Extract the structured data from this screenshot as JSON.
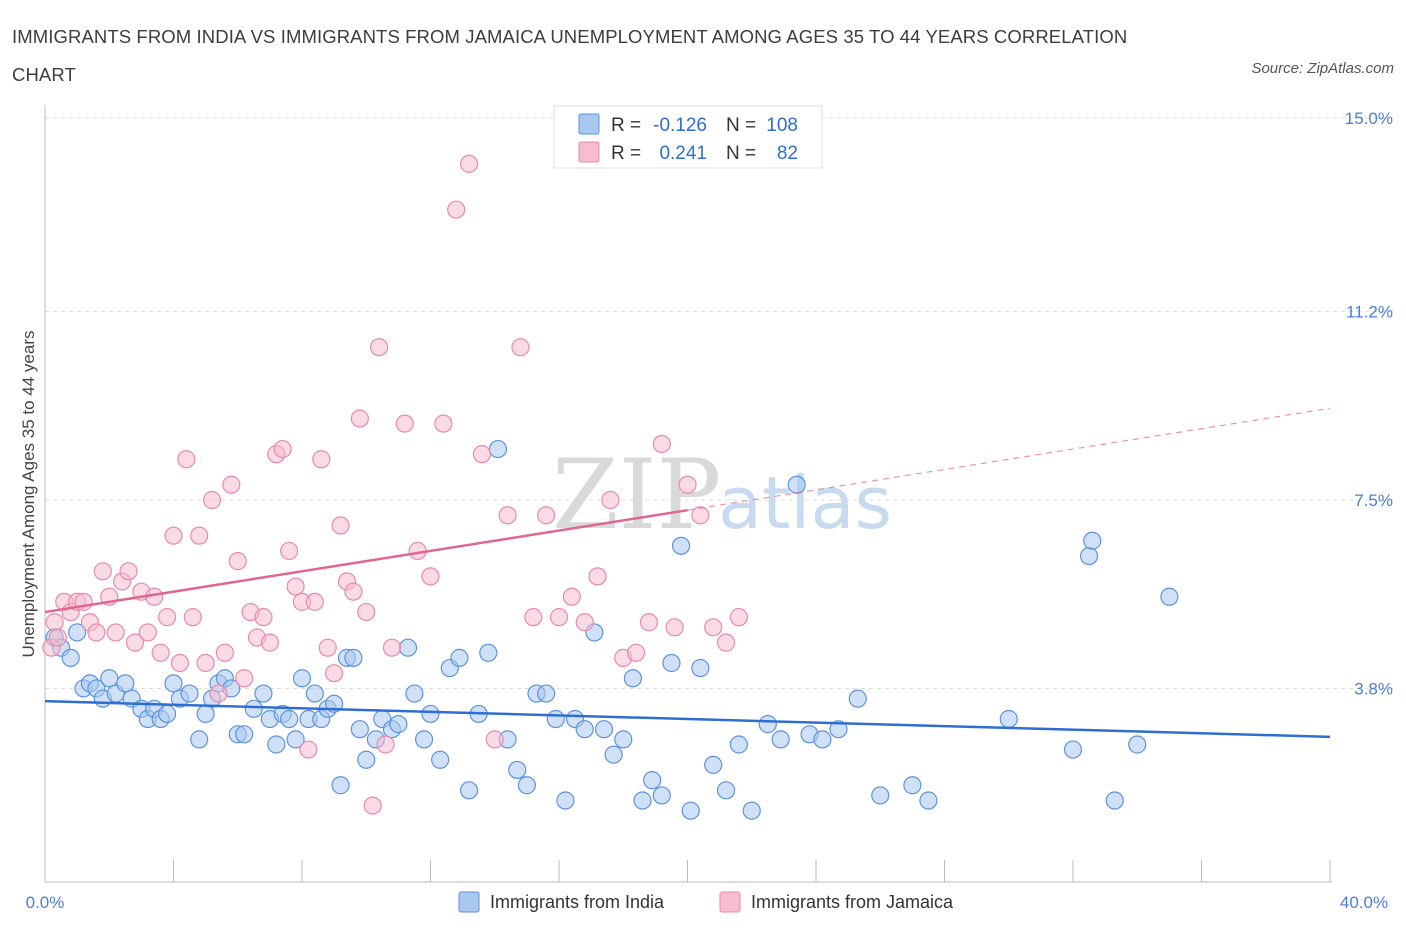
{
  "header": {
    "title": "IMMIGRANTS FROM INDIA VS IMMIGRANTS FROM JAMAICA UNEMPLOYMENT AMONG AGES 35 TO 44 YEARS CORRELATION CHART",
    "source": "Source: ZipAtlas.com"
  },
  "watermark": {
    "zip": "ZIP",
    "atlas": "atlas"
  },
  "legend": {
    "r_label": "R =",
    "n_label": "N =",
    "india": {
      "r": "-0.126",
      "n": "108"
    },
    "jamaica": {
      "r": "0.241",
      "n": "82"
    }
  },
  "colors": {
    "india_fill": "#a9c8f0",
    "india_stroke": "#5d93dd",
    "india_line": "#2f6ed0",
    "jamaica_fill": "#f6bcd0",
    "jamaica_stroke": "#e88aab",
    "jamaica_line": "#e06592"
  },
  "chart_data": {
    "type": "scatter",
    "title": "IMMIGRANTS FROM INDIA VS IMMIGRANTS FROM JAMAICA UNEMPLOYMENT AMONG AGES 35 TO 44 YEARS CORRELATION CHART",
    "xlabel": "",
    "ylabel": "Unemployment Among Ages 35 to 44 years",
    "xlim": [
      0,
      40
    ],
    "ylim": [
      0,
      15
    ],
    "x_tick_labels": [
      "0.0%",
      "40.0%"
    ],
    "y_ticks": [
      3.8,
      7.5,
      11.2,
      15.0
    ],
    "y_tick_labels": [
      "3.8%",
      "7.5%",
      "11.2%",
      "15.0%"
    ],
    "grid": true,
    "legend_position": "top-center",
    "series": [
      {
        "name": "Immigrants from India",
        "r": -0.126,
        "n": 108,
        "trend": {
          "x0": 0,
          "y0": 3.55,
          "x1": 40,
          "y1": 2.85
        },
        "points": [
          [
            0.3,
            4.8
          ],
          [
            0.5,
            4.6
          ],
          [
            0.8,
            4.4
          ],
          [
            1.0,
            4.9
          ],
          [
            1.2,
            3.8
          ],
          [
            1.4,
            3.9
          ],
          [
            1.6,
            3.8
          ],
          [
            1.8,
            3.6
          ],
          [
            2.0,
            4.0
          ],
          [
            2.2,
            3.7
          ],
          [
            2.5,
            3.9
          ],
          [
            2.7,
            3.6
          ],
          [
            3.0,
            3.4
          ],
          [
            3.2,
            3.2
          ],
          [
            3.4,
            3.4
          ],
          [
            3.6,
            3.2
          ],
          [
            3.8,
            3.3
          ],
          [
            4.0,
            3.9
          ],
          [
            4.2,
            3.6
          ],
          [
            4.5,
            3.7
          ],
          [
            4.8,
            2.8
          ],
          [
            5.0,
            3.3
          ],
          [
            5.2,
            3.6
          ],
          [
            5.4,
            3.9
          ],
          [
            5.6,
            4.0
          ],
          [
            5.8,
            3.8
          ],
          [
            6.0,
            2.9
          ],
          [
            6.2,
            2.9
          ],
          [
            6.5,
            3.4
          ],
          [
            6.8,
            3.7
          ],
          [
            7.0,
            3.2
          ],
          [
            7.2,
            2.7
          ],
          [
            7.4,
            3.3
          ],
          [
            7.6,
            3.2
          ],
          [
            7.8,
            2.8
          ],
          [
            8.0,
            4.0
          ],
          [
            8.2,
            3.2
          ],
          [
            8.4,
            3.7
          ],
          [
            8.6,
            3.2
          ],
          [
            8.8,
            3.4
          ],
          [
            9.0,
            3.5
          ],
          [
            9.2,
            1.9
          ],
          [
            9.4,
            4.4
          ],
          [
            9.6,
            4.4
          ],
          [
            9.8,
            3.0
          ],
          [
            10.0,
            2.4
          ],
          [
            10.3,
            2.8
          ],
          [
            10.5,
            3.2
          ],
          [
            10.8,
            3.0
          ],
          [
            11.0,
            3.1
          ],
          [
            11.3,
            4.6
          ],
          [
            11.5,
            3.7
          ],
          [
            11.8,
            2.8
          ],
          [
            12.0,
            3.3
          ],
          [
            12.3,
            2.4
          ],
          [
            12.6,
            4.2
          ],
          [
            12.9,
            4.4
          ],
          [
            13.2,
            1.8
          ],
          [
            13.5,
            3.3
          ],
          [
            13.8,
            4.5
          ],
          [
            14.1,
            8.5
          ],
          [
            14.4,
            2.8
          ],
          [
            14.7,
            2.2
          ],
          [
            15.0,
            1.9
          ],
          [
            15.3,
            3.7
          ],
          [
            15.6,
            3.7
          ],
          [
            15.9,
            3.2
          ],
          [
            16.2,
            1.6
          ],
          [
            16.5,
            3.2
          ],
          [
            16.8,
            3.0
          ],
          [
            17.1,
            4.9
          ],
          [
            17.4,
            3.0
          ],
          [
            17.7,
            2.5
          ],
          [
            18.0,
            2.8
          ],
          [
            18.3,
            4.0
          ],
          [
            18.6,
            1.6
          ],
          [
            18.9,
            2.0
          ],
          [
            19.2,
            1.7
          ],
          [
            19.5,
            4.3
          ],
          [
            19.8,
            6.6
          ],
          [
            20.1,
            1.4
          ],
          [
            20.4,
            4.2
          ],
          [
            20.8,
            2.3
          ],
          [
            21.2,
            1.8
          ],
          [
            21.6,
            2.7
          ],
          [
            22.0,
            1.4
          ],
          [
            22.5,
            3.1
          ],
          [
            22.9,
            2.8
          ],
          [
            23.4,
            7.8
          ],
          [
            23.8,
            2.9
          ],
          [
            24.2,
            2.8
          ],
          [
            24.7,
            3.0
          ],
          [
            25.3,
            3.6
          ],
          [
            26.0,
            1.7
          ],
          [
            27.0,
            1.9
          ],
          [
            27.5,
            1.6
          ],
          [
            30.0,
            3.2
          ],
          [
            32.0,
            2.6
          ],
          [
            32.5,
            6.4
          ],
          [
            32.6,
            6.7
          ],
          [
            33.3,
            1.6
          ],
          [
            34.0,
            2.7
          ],
          [
            35.0,
            5.6
          ]
        ]
      },
      {
        "name": "Immigrants from Jamaica",
        "r": 0.241,
        "n": 82,
        "trend": {
          "x0": 0,
          "y0": 5.3,
          "x1": 20,
          "y1": 7.3,
          "x1_dashed": 40,
          "y1_dashed": 9.3
        },
        "points": [
          [
            0.2,
            4.6
          ],
          [
            0.3,
            5.1
          ],
          [
            0.4,
            4.8
          ],
          [
            0.6,
            5.5
          ],
          [
            0.8,
            5.3
          ],
          [
            1.0,
            5.5
          ],
          [
            1.2,
            5.5
          ],
          [
            1.4,
            5.1
          ],
          [
            1.6,
            4.9
          ],
          [
            1.8,
            6.1
          ],
          [
            2.0,
            5.6
          ],
          [
            2.2,
            4.9
          ],
          [
            2.4,
            5.9
          ],
          [
            2.6,
            6.1
          ],
          [
            2.8,
            4.7
          ],
          [
            3.0,
            5.7
          ],
          [
            3.2,
            4.9
          ],
          [
            3.4,
            5.6
          ],
          [
            3.6,
            4.5
          ],
          [
            3.8,
            5.2
          ],
          [
            4.0,
            6.8
          ],
          [
            4.2,
            4.3
          ],
          [
            4.4,
            8.3
          ],
          [
            4.6,
            5.2
          ],
          [
            4.8,
            6.8
          ],
          [
            5.0,
            4.3
          ],
          [
            5.2,
            7.5
          ],
          [
            5.4,
            3.7
          ],
          [
            5.6,
            4.5
          ],
          [
            5.8,
            7.8
          ],
          [
            6.0,
            6.3
          ],
          [
            6.2,
            4.0
          ],
          [
            6.4,
            5.3
          ],
          [
            6.6,
            4.8
          ],
          [
            6.8,
            5.2
          ],
          [
            7.0,
            4.7
          ],
          [
            7.2,
            8.4
          ],
          [
            7.4,
            8.5
          ],
          [
            7.6,
            6.5
          ],
          [
            7.8,
            5.8
          ],
          [
            8.0,
            5.5
          ],
          [
            8.2,
            2.6
          ],
          [
            8.4,
            5.5
          ],
          [
            8.6,
            8.3
          ],
          [
            8.8,
            4.6
          ],
          [
            9.0,
            4.1
          ],
          [
            9.2,
            7.0
          ],
          [
            9.4,
            5.9
          ],
          [
            9.6,
            5.7
          ],
          [
            9.8,
            9.1
          ],
          [
            10.0,
            5.3
          ],
          [
            10.2,
            1.5
          ],
          [
            10.4,
            10.5
          ],
          [
            10.6,
            2.7
          ],
          [
            10.8,
            4.6
          ],
          [
            11.2,
            9.0
          ],
          [
            11.6,
            6.5
          ],
          [
            12.0,
            6.0
          ],
          [
            12.4,
            9.0
          ],
          [
            12.8,
            13.2
          ],
          [
            13.2,
            14.1
          ],
          [
            13.6,
            8.4
          ],
          [
            14.0,
            2.8
          ],
          [
            14.4,
            7.2
          ],
          [
            14.8,
            10.5
          ],
          [
            15.2,
            5.2
          ],
          [
            15.6,
            7.2
          ],
          [
            16.0,
            5.2
          ],
          [
            16.4,
            5.6
          ],
          [
            16.8,
            5.1
          ],
          [
            17.2,
            6.0
          ],
          [
            17.6,
            7.5
          ],
          [
            18.0,
            4.4
          ],
          [
            18.4,
            4.5
          ],
          [
            18.8,
            5.1
          ],
          [
            19.2,
            8.6
          ],
          [
            19.6,
            5.0
          ],
          [
            20.0,
            7.8
          ],
          [
            20.4,
            7.2
          ],
          [
            20.8,
            5.0
          ],
          [
            21.2,
            4.7
          ],
          [
            21.6,
            5.2
          ]
        ]
      }
    ]
  }
}
